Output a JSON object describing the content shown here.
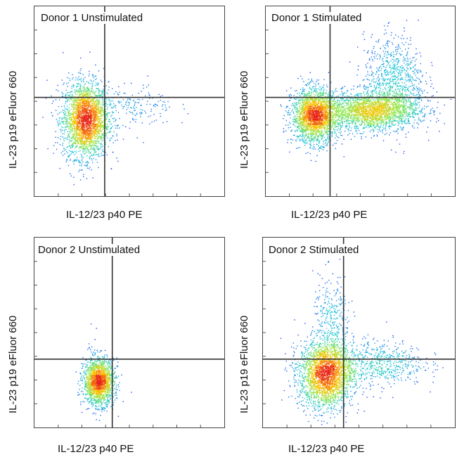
{
  "chart_data": [
    {
      "type": "scatter",
      "title": "Donor 1 Unstimulated",
      "xlabel": "IL-12/23 p40 PE",
      "ylabel": "IL-23 p19 eFluor 660",
      "xlim": [
        0,
        1
      ],
      "ylim": [
        0,
        1
      ],
      "quadrant_gate": {
        "x": 0.37,
        "y": 0.52
      },
      "populations": [
        {
          "name": "",
          "center": [
            0.27,
            0.4
          ],
          "spread": [
            0.06,
            0.1
          ],
          "count": 2600
        },
        {
          "name": "",
          "center": [
            0.5,
            0.47
          ],
          "spread": [
            0.12,
            0.06
          ],
          "count": 220
        }
      ]
    },
    {
      "type": "scatter",
      "title": "Donor 1 Stimulated",
      "xlabel": "IL-12/23 p40 PE",
      "ylabel": "IL-23 p19 eFluor 660",
      "xlim": [
        0,
        1
      ],
      "ylim": [
        0,
        1
      ],
      "quadrant_gate": {
        "x": 0.34,
        "y": 0.52
      },
      "populations": [
        {
          "name": "",
          "center": [
            0.26,
            0.42
          ],
          "spread": [
            0.06,
            0.07
          ],
          "count": 2200
        },
        {
          "name": "",
          "center": [
            0.55,
            0.45
          ],
          "spread": [
            0.13,
            0.05
          ],
          "count": 2200
        },
        {
          "name": "",
          "center": [
            0.68,
            0.6
          ],
          "spread": [
            0.08,
            0.12
          ],
          "count": 900
        }
      ]
    },
    {
      "type": "scatter",
      "title": "Donor 2 Unstimulated",
      "xlabel": "IL-12/23 p40 PE",
      "ylabel": "IL-23 p19 eFluor 660",
      "xlim": [
        0,
        1
      ],
      "ylim": [
        0,
        1
      ],
      "quadrant_gate": {
        "x": 0.41,
        "y": 0.36
      },
      "populations": [
        {
          "name": "",
          "center": [
            0.34,
            0.24
          ],
          "spread": [
            0.04,
            0.06
          ],
          "count": 1800
        },
        {
          "name": "",
          "center": [
            0.3,
            0.42
          ],
          "spread": [
            0.02,
            0.05
          ],
          "count": 10
        }
      ]
    },
    {
      "type": "scatter",
      "title": "Donor 2 Stimulated",
      "xlabel": "IL-12/23 p40 PE",
      "ylabel": "IL-23 p19 eFluor 660",
      "xlim": [
        0,
        1
      ],
      "ylim": [
        0,
        1
      ],
      "quadrant_gate": {
        "x": 0.42,
        "y": 0.36
      },
      "populations": [
        {
          "name": "",
          "center": [
            0.33,
            0.28
          ],
          "spread": [
            0.07,
            0.09
          ],
          "count": 2600
        },
        {
          "name": "",
          "center": [
            0.6,
            0.34
          ],
          "spread": [
            0.12,
            0.06
          ],
          "count": 600
        },
        {
          "name": "",
          "center": [
            0.36,
            0.56
          ],
          "spread": [
            0.05,
            0.12
          ],
          "count": 300
        }
      ]
    }
  ],
  "colors": {
    "density_low": "#1f2fff",
    "density_mid": "#18c6d8",
    "density_high_1": "#8fe84a",
    "density_high_2": "#ffc400",
    "density_peak": "#e8201a",
    "gate_line": "#333333",
    "frame": "#444444"
  }
}
